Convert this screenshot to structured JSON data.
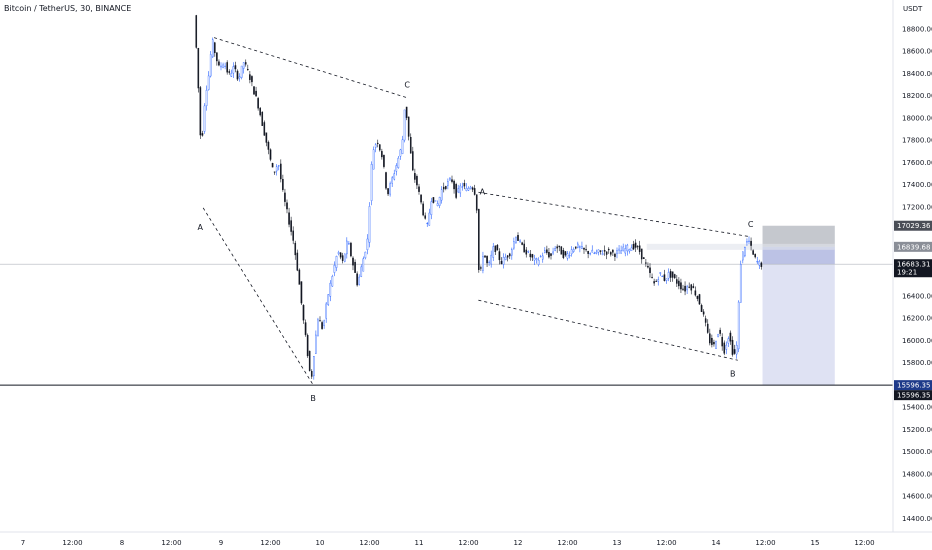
{
  "header": {
    "title": "Bitcoin / TetherUS, 30, BINANCE",
    "unit": "USDT"
  },
  "chart_data": {
    "type": "candlestick",
    "symbol": "Bitcoin / TetherUS",
    "interval": "30",
    "exchange": "BINANCE",
    "yticks": [
      18800,
      18600,
      18400,
      18200,
      18000,
      17800,
      17600,
      17400,
      17200,
      16400,
      16200,
      16000,
      15800,
      15400,
      15200,
      15000,
      14800,
      14600,
      14400
    ],
    "ytick_labels": [
      "18800.00",
      "18600.00",
      "18400.00",
      "18200.00",
      "18000.00",
      "17800.00",
      "17600.00",
      "17400.00",
      "17200.00",
      "16400.00",
      "16200.00",
      "16000.00",
      "15800.00",
      "15400.00",
      "15200.00",
      "15000.00",
      "14800.00",
      "14600.00",
      "14400.00"
    ],
    "xticks": [
      {
        "label": "7",
        "day": 7.0
      },
      {
        "label": "12:00",
        "day": 7.5
      },
      {
        "label": "8",
        "day": 8.0
      },
      {
        "label": "12:00",
        "day": 8.5
      },
      {
        "label": "9",
        "day": 9.0
      },
      {
        "label": "12:00",
        "day": 9.5
      },
      {
        "label": "10",
        "day": 10.0
      },
      {
        "label": "12:00",
        "day": 10.5
      },
      {
        "label": "11",
        "day": 11.0
      },
      {
        "label": "12:00",
        "day": 11.5
      },
      {
        "label": "12",
        "day": 12.0
      },
      {
        "label": "12:00",
        "day": 12.5
      },
      {
        "label": "13",
        "day": 13.0
      },
      {
        "label": "12:00",
        "day": 13.5
      },
      {
        "label": "14",
        "day": 14.0
      },
      {
        "label": "12:00",
        "day": 14.5
      },
      {
        "label": "15",
        "day": 15.0
      },
      {
        "label": "12:00",
        "day": 15.5
      }
    ],
    "price_labels": [
      {
        "text": "17029.36",
        "value": 17029.36,
        "kind": "gray"
      },
      {
        "text": "16839.68",
        "value": 16839.68,
        "kind": "lightgray"
      },
      {
        "text": "16683.31",
        "value": 16683.31,
        "kind": "dark",
        "sub": "19:21"
      },
      {
        "text": "15596.35",
        "value": 15596.35,
        "kind": "navy"
      },
      {
        "text": "15596.35",
        "value": 15596.35,
        "kind": "dark"
      }
    ],
    "horizontal_level": 15596.35,
    "current_price": 16683.31,
    "countdown": "19:21",
    "position": {
      "entry": 16839.68,
      "stop": 17029.36,
      "target": 15596.35,
      "start_day": 14.47,
      "end_day": 15.2
    },
    "pattern_1": [
      {
        "label": "A",
        "day": 8.82,
        "value": 17190
      },
      {
        "label": "B",
        "day": 9.93,
        "value": 15600
      },
      {
        "label": "C",
        "day": 10.88,
        "value": 18180
      },
      {
        "upper_start_day": 8.93,
        "upper_start_value": 18720
      }
    ],
    "pattern_2": [
      {
        "label": "A",
        "day": 11.6,
        "value": 17330
      },
      {
        "label": "B",
        "day": 14.22,
        "value": 15820
      },
      {
        "label": "C",
        "day": 14.35,
        "value": 16930
      },
      {
        "lower_start_day": 11.6,
        "lower_start_value": 16360
      }
    ],
    "path": [
      [
        8.75,
        18920
      ],
      [
        8.78,
        18500
      ],
      [
        8.82,
        17700
      ],
      [
        8.86,
        18200
      ],
      [
        8.9,
        18400
      ],
      [
        8.93,
        18700
      ],
      [
        8.97,
        18550
      ],
      [
        9.0,
        18450
      ],
      [
        9.05,
        18500
      ],
      [
        9.1,
        18380
      ],
      [
        9.15,
        18450
      ],
      [
        9.2,
        18350
      ],
      [
        9.25,
        18500
      ],
      [
        9.3,
        18400
      ],
      [
        9.35,
        18250
      ],
      [
        9.4,
        18100
      ],
      [
        9.45,
        17900
      ],
      [
        9.5,
        17700
      ],
      [
        9.55,
        17500
      ],
      [
        9.6,
        17600
      ],
      [
        9.65,
        17300
      ],
      [
        9.7,
        17100
      ],
      [
        9.75,
        16900
      ],
      [
        9.8,
        16600
      ],
      [
        9.85,
        16200
      ],
      [
        9.9,
        15850
      ],
      [
        9.93,
        15620
      ],
      [
        9.96,
        15900
      ],
      [
        10.0,
        16200
      ],
      [
        10.05,
        16100
      ],
      [
        10.1,
        16400
      ],
      [
        10.15,
        16600
      ],
      [
        10.2,
        16800
      ],
      [
        10.25,
        16700
      ],
      [
        10.3,
        16900
      ],
      [
        10.35,
        16700
      ],
      [
        10.4,
        16500
      ],
      [
        10.45,
        16700
      ],
      [
        10.5,
        16900
      ],
      [
        10.55,
        17700
      ],
      [
        10.6,
        17800
      ],
      [
        10.65,
        17650
      ],
      [
        10.7,
        17300
      ],
      [
        10.75,
        17450
      ],
      [
        10.8,
        17600
      ],
      [
        10.85,
        17750
      ],
      [
        10.88,
        18150
      ],
      [
        10.92,
        17800
      ],
      [
        10.96,
        17500
      ],
      [
        11.0,
        17400
      ],
      [
        11.05,
        17200
      ],
      [
        11.1,
        17000
      ],
      [
        11.15,
        17300
      ],
      [
        11.2,
        17200
      ],
      [
        11.25,
        17350
      ],
      [
        11.3,
        17400
      ],
      [
        11.35,
        17450
      ],
      [
        11.4,
        17300
      ],
      [
        11.45,
        17400
      ],
      [
        11.5,
        17350
      ],
      [
        11.55,
        17400
      ],
      [
        11.6,
        17300
      ],
      [
        11.63,
        16500
      ],
      [
        11.67,
        16800
      ],
      [
        11.72,
        16650
      ],
      [
        11.78,
        16850
      ],
      [
        11.85,
        16700
      ],
      [
        11.9,
        16750
      ],
      [
        11.95,
        16800
      ],
      [
        12.0,
        16950
      ],
      [
        12.05,
        16850
      ],
      [
        12.1,
        16800
      ],
      [
        12.15,
        16750
      ],
      [
        12.2,
        16700
      ],
      [
        12.25,
        16750
      ],
      [
        12.3,
        16800
      ],
      [
        12.35,
        16750
      ],
      [
        12.4,
        16850
      ],
      [
        12.45,
        16800
      ],
      [
        12.5,
        16750
      ],
      [
        12.55,
        16800
      ],
      [
        12.6,
        16850
      ],
      [
        12.7,
        16800
      ],
      [
        12.8,
        16780
      ],
      [
        12.9,
        16800
      ],
      [
        13.0,
        16780
      ],
      [
        13.1,
        16820
      ],
      [
        13.2,
        16850
      ],
      [
        13.25,
        16800
      ],
      [
        13.3,
        16700
      ],
      [
        13.35,
        16600
      ],
      [
        13.4,
        16500
      ],
      [
        13.45,
        16600
      ],
      [
        13.5,
        16550
      ],
      [
        13.55,
        16600
      ],
      [
        13.6,
        16550
      ],
      [
        13.65,
        16500
      ],
      [
        13.7,
        16450
      ],
      [
        13.75,
        16500
      ],
      [
        13.8,
        16450
      ],
      [
        13.85,
        16350
      ],
      [
        13.9,
        16200
      ],
      [
        13.95,
        16000
      ],
      [
        14.0,
        15950
      ],
      [
        14.05,
        16100
      ],
      [
        14.1,
        15900
      ],
      [
        14.15,
        16050
      ],
      [
        14.2,
        15850
      ],
      [
        14.23,
        15950
      ],
      [
        14.27,
        16700
      ],
      [
        14.31,
        16850
      ],
      [
        14.35,
        16900
      ],
      [
        14.4,
        16750
      ],
      [
        14.44,
        16700
      ],
      [
        14.47,
        16683
      ]
    ]
  }
}
